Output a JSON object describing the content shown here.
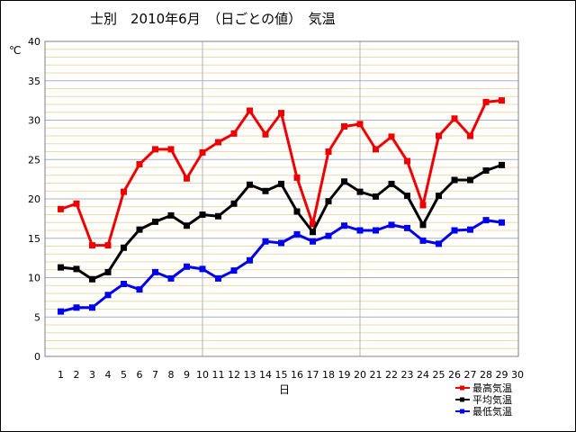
{
  "chart_data": {
    "type": "line",
    "title": "士別　2010年6月　（日ごとの値）　気温",
    "xlabel": "日",
    "ylabel": "℃",
    "xlim": [
      0,
      30
    ],
    "ylim": [
      0,
      40
    ],
    "x_ticks": [
      1,
      2,
      3,
      4,
      5,
      6,
      7,
      8,
      9,
      10,
      11,
      12,
      13,
      14,
      15,
      16,
      17,
      18,
      19,
      20,
      21,
      22,
      23,
      24,
      25,
      26,
      27,
      28,
      29,
      30
    ],
    "y_ticks": [
      0,
      5,
      10,
      15,
      20,
      25,
      30,
      35,
      40
    ],
    "grid": true,
    "legend_position": "bottom-right",
    "x": [
      1,
      2,
      3,
      4,
      5,
      6,
      7,
      8,
      9,
      10,
      11,
      12,
      13,
      14,
      15,
      16,
      17,
      18,
      19,
      20,
      21,
      22,
      23,
      24,
      25,
      26,
      27,
      28,
      29
    ],
    "series": [
      {
        "name": "最高気温",
        "color": "#ee0000",
        "values": [
          18.7,
          19.4,
          14.1,
          14.1,
          20.9,
          24.4,
          26.3,
          26.3,
          22.6,
          25.9,
          27.2,
          28.3,
          31.2,
          28.2,
          30.9,
          22.7,
          16.8,
          26.0,
          29.2,
          29.5,
          26.3,
          27.9,
          24.8,
          19.2,
          28.0,
          30.2,
          28.0,
          32.3,
          32.5
        ]
      },
      {
        "name": "平均気温",
        "color": "#000000",
        "values": [
          11.3,
          11.1,
          9.8,
          10.7,
          13.8,
          16.1,
          17.1,
          17.9,
          16.6,
          18.0,
          17.8,
          19.4,
          21.8,
          21.0,
          21.9,
          18.4,
          15.8,
          19.7,
          22.2,
          20.9,
          20.3,
          21.9,
          20.4,
          16.7,
          20.4,
          22.4,
          22.4,
          23.6,
          24.3
        ]
      },
      {
        "name": "最低気温",
        "color": "#0000ee",
        "values": [
          5.7,
          6.2,
          6.2,
          7.8,
          9.2,
          8.5,
          10.7,
          9.9,
          11.4,
          11.1,
          9.9,
          10.9,
          12.2,
          14.6,
          14.4,
          15.5,
          14.6,
          15.3,
          16.6,
          16.0,
          16.0,
          16.7,
          16.3,
          14.7,
          14.3,
          16.0,
          16.1,
          17.3,
          17.0
        ]
      }
    ]
  }
}
